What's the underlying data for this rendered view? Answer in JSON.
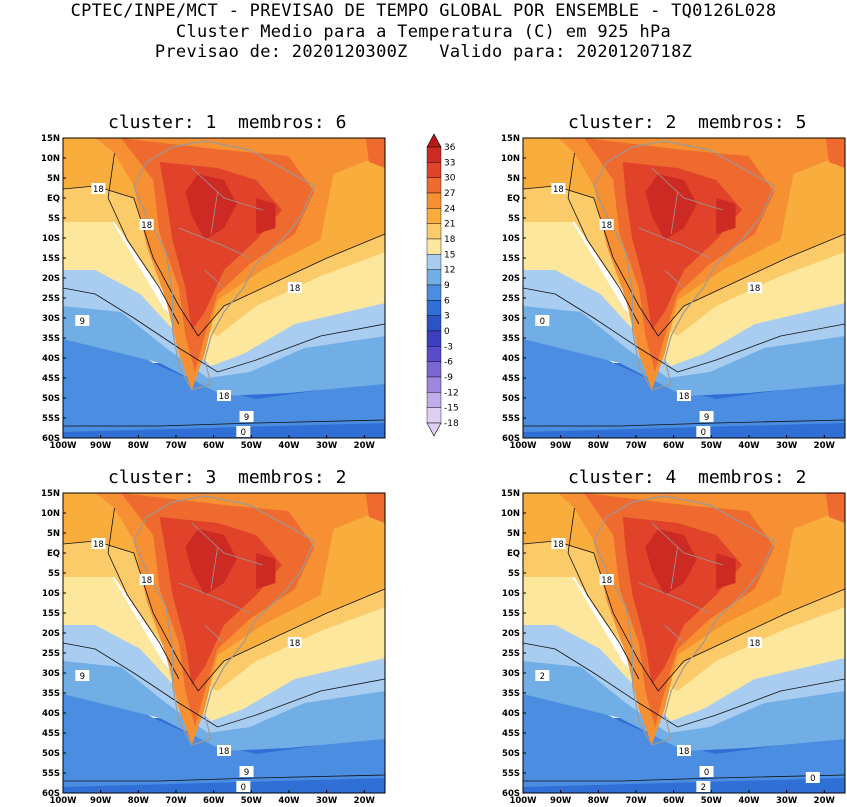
{
  "header": {
    "line1": "CPTEC/INPE/MCT - PREVISAO DE TEMPO GLOBAL POR ENSEMBLE - TQ0126L028",
    "line2": "Cluster Medio para a Temperatura (C) em 925 hPa",
    "line3": "Previsao de: 2020120300Z   Valido para: 2020120718Z"
  },
  "axes": {
    "lat_labels": [
      "15N",
      "10N",
      "5N",
      "EQ",
      "5S",
      "10S",
      "15S",
      "20S",
      "25S",
      "30S",
      "35S",
      "40S",
      "45S",
      "50S",
      "55S",
      "60S"
    ],
    "lon_labels": [
      "100W",
      "90W",
      "80W",
      "70W",
      "60W",
      "50W",
      "40W",
      "30W",
      "20W"
    ]
  },
  "colorbar": {
    "levels": [
      "36",
      "33",
      "30",
      "27",
      "24",
      "21",
      "18",
      "15",
      "12",
      "9",
      "6",
      "3",
      "0",
      "-3",
      "-6",
      "-9",
      "-12",
      "-15",
      "-18"
    ],
    "colors": [
      "#cd1f1f",
      "#dc3b2a",
      "#ea5a2c",
      "#f47d30",
      "#f7a233",
      "#f9c15c",
      "#fbe08a",
      "#c9ddf3",
      "#8cbde9",
      "#5c9ae0",
      "#3a7ad8",
      "#2658cf",
      "#2a3dbd",
      "#4a40c6",
      "#6a58d0",
      "#8c78d8",
      "#ad99e2",
      "#cdbdee",
      "#e7dcf7"
    ],
    "band_colors": [
      "#b81818",
      "#cc2a22",
      "#e0432a",
      "#ef6a2f",
      "#f69032",
      "#f9ad3d",
      "#fbcb6a",
      "#fde79c",
      "#a9cdf0",
      "#72aee6",
      "#4b8de0",
      "#2f6fd6",
      "#2b52c6",
      "#3b3fc0",
      "#5b4ccb",
      "#7b66d4",
      "#9d88dd",
      "#bfaee9",
      "#ddd0f4"
    ]
  },
  "panels": [
    {
      "title": "cluster: 1  membros: 6",
      "contour_labels": [
        "18",
        "18",
        "18",
        "9",
        "18",
        "9",
        "0"
      ]
    },
    {
      "title": "cluster: 2  membros: 5",
      "contour_labels": [
        "18",
        "18",
        "18",
        "0",
        "18",
        "9",
        "0"
      ]
    },
    {
      "title": "cluster: 3  membros: 2",
      "contour_labels": [
        "18",
        "18",
        "18",
        "9",
        "18",
        "9",
        "0"
      ]
    },
    {
      "title": "cluster: 4  membros: 2",
      "contour_labels": [
        "18",
        "18",
        "18",
        "2",
        "18",
        "0",
        "2",
        "0"
      ]
    }
  ]
}
